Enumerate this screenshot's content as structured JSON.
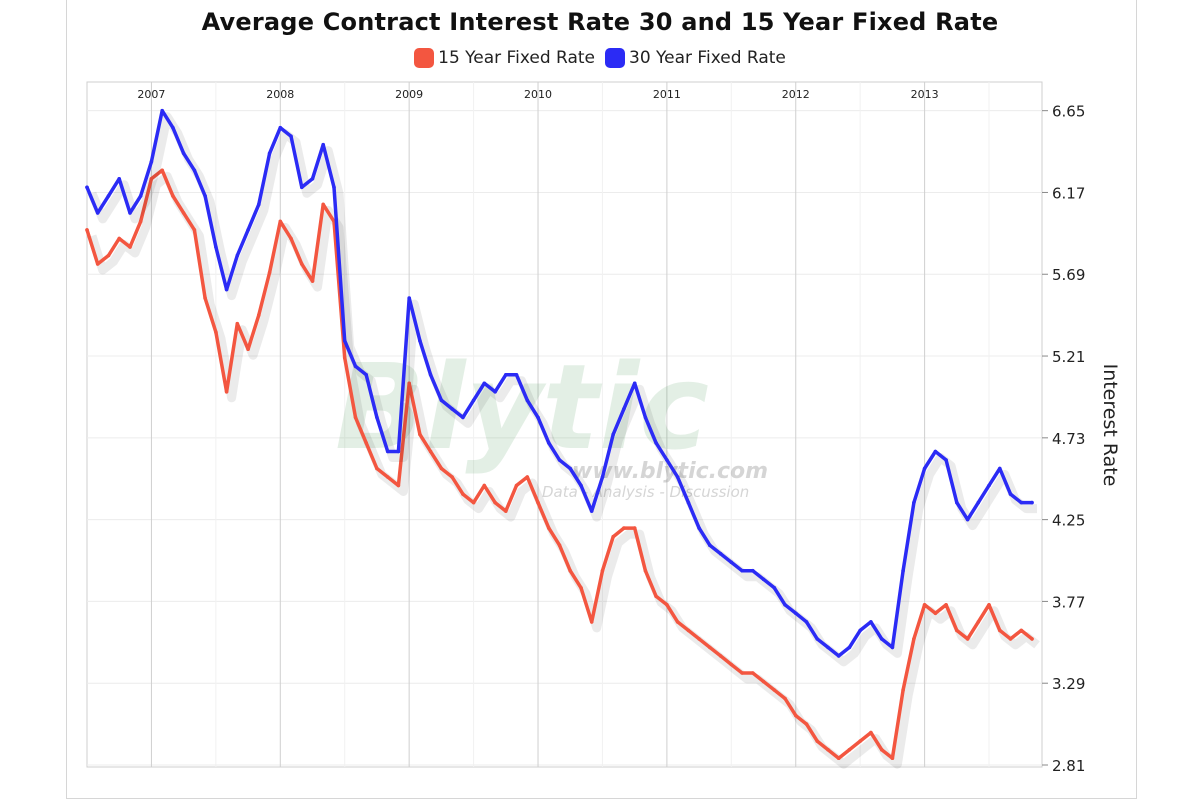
{
  "chart_data": {
    "type": "line",
    "title": "Average Contract Interest Rate 30 and 15 Year Fixed Rate",
    "ylabel": "Interest Rate",
    "xlabel": "",
    "ylim": [
      2.81,
      6.75
    ],
    "yticks": [
      "6.65",
      "6.17",
      "5.69",
      "5.21",
      "4.73",
      "4.25",
      "3.77",
      "3.29",
      "2.81"
    ],
    "xticks": [
      "2007",
      "2008",
      "2009",
      "2010",
      "2011",
      "2012",
      "2013"
    ],
    "legend_position": "top-center",
    "grid": true,
    "watermark": {
      "logo": "Blytic",
      "url": "www.blytic.com",
      "tagline": "Data - Analysis - Discussion"
    },
    "series": [
      {
        "name": "15 Year Fixed Rate",
        "color": "#f35640",
        "points": [
          [
            "2006-07",
            5.95
          ],
          [
            "2006-08",
            5.75
          ],
          [
            "2006-09",
            5.8
          ],
          [
            "2006-10",
            5.9
          ],
          [
            "2006-11",
            5.85
          ],
          [
            "2006-12",
            6.0
          ],
          [
            "2007-01",
            6.25
          ],
          [
            "2007-02",
            6.3
          ],
          [
            "2007-03",
            6.15
          ],
          [
            "2007-04",
            6.05
          ],
          [
            "2007-05",
            5.95
          ],
          [
            "2007-06",
            5.55
          ],
          [
            "2007-07",
            5.35
          ],
          [
            "2007-08",
            5.0
          ],
          [
            "2007-09",
            5.4
          ],
          [
            "2007-10",
            5.25
          ],
          [
            "2007-11",
            5.45
          ],
          [
            "2007-12",
            5.7
          ],
          [
            "2008-01",
            6.0
          ],
          [
            "2008-02",
            5.9
          ],
          [
            "2008-03",
            5.75
          ],
          [
            "2008-04",
            5.65
          ],
          [
            "2008-05",
            6.1
          ],
          [
            "2008-06",
            6.0
          ],
          [
            "2008-07",
            5.2
          ],
          [
            "2008-08",
            4.85
          ],
          [
            "2008-09",
            4.7
          ],
          [
            "2008-10",
            4.55
          ],
          [
            "2008-11",
            4.5
          ],
          [
            "2008-12",
            4.45
          ],
          [
            "2009-01",
            5.05
          ],
          [
            "2009-02",
            4.75
          ],
          [
            "2009-03",
            4.65
          ],
          [
            "2009-04",
            4.55
          ],
          [
            "2009-05",
            4.5
          ],
          [
            "2009-06",
            4.4
          ],
          [
            "2009-07",
            4.35
          ],
          [
            "2009-08",
            4.45
          ],
          [
            "2009-09",
            4.35
          ],
          [
            "2009-10",
            4.3
          ],
          [
            "2009-11",
            4.45
          ],
          [
            "2009-12",
            4.5
          ],
          [
            "2010-01",
            4.35
          ],
          [
            "2010-02",
            4.2
          ],
          [
            "2010-03",
            4.1
          ],
          [
            "2010-04",
            3.95
          ],
          [
            "2010-05",
            3.85
          ],
          [
            "2010-06",
            3.65
          ],
          [
            "2010-07",
            3.95
          ],
          [
            "2010-08",
            4.15
          ],
          [
            "2010-09",
            4.2
          ],
          [
            "2010-10",
            4.2
          ],
          [
            "2010-11",
            3.95
          ],
          [
            "2010-12",
            3.8
          ],
          [
            "2011-01",
            3.75
          ],
          [
            "2011-02",
            3.65
          ],
          [
            "2011-03",
            3.6
          ],
          [
            "2011-04",
            3.55
          ],
          [
            "2011-05",
            3.5
          ],
          [
            "2011-06",
            3.45
          ],
          [
            "2011-07",
            3.4
          ],
          [
            "2011-08",
            3.35
          ],
          [
            "2011-09",
            3.35
          ],
          [
            "2011-10",
            3.3
          ],
          [
            "2011-11",
            3.25
          ],
          [
            "2011-12",
            3.2
          ],
          [
            "2012-01",
            3.1
          ],
          [
            "2012-02",
            3.05
          ],
          [
            "2012-03",
            2.95
          ],
          [
            "2012-04",
            2.9
          ],
          [
            "2012-05",
            2.85
          ],
          [
            "2012-06",
            2.9
          ],
          [
            "2012-07",
            2.95
          ],
          [
            "2012-08",
            3.0
          ],
          [
            "2012-09",
            2.9
          ],
          [
            "2012-10",
            2.85
          ],
          [
            "2012-11",
            3.25
          ],
          [
            "2012-12",
            3.55
          ],
          [
            "2013-01",
            3.75
          ],
          [
            "2013-02",
            3.7
          ],
          [
            "2013-03",
            3.75
          ],
          [
            "2013-04",
            3.6
          ],
          [
            "2013-05",
            3.55
          ],
          [
            "2013-06",
            3.65
          ],
          [
            "2013-07",
            3.75
          ],
          [
            "2013-08",
            3.6
          ],
          [
            "2013-09",
            3.55
          ],
          [
            "2013-10",
            3.6
          ],
          [
            "2013-11",
            3.55
          ]
        ]
      },
      {
        "name": "30 Year Fixed Rate",
        "color": "#2b2bf5",
        "points": [
          [
            "2006-07",
            6.2
          ],
          [
            "2006-08",
            6.05
          ],
          [
            "2006-09",
            6.15
          ],
          [
            "2006-10",
            6.25
          ],
          [
            "2006-11",
            6.05
          ],
          [
            "2006-12",
            6.15
          ],
          [
            "2007-01",
            6.35
          ],
          [
            "2007-02",
            6.65
          ],
          [
            "2007-03",
            6.55
          ],
          [
            "2007-04",
            6.4
          ],
          [
            "2007-05",
            6.3
          ],
          [
            "2007-06",
            6.15
          ],
          [
            "2007-07",
            5.85
          ],
          [
            "2007-08",
            5.6
          ],
          [
            "2007-09",
            5.8
          ],
          [
            "2007-10",
            5.95
          ],
          [
            "2007-11",
            6.1
          ],
          [
            "2007-12",
            6.4
          ],
          [
            "2008-01",
            6.55
          ],
          [
            "2008-02",
            6.5
          ],
          [
            "2008-03",
            6.2
          ],
          [
            "2008-04",
            6.25
          ],
          [
            "2008-05",
            6.45
          ],
          [
            "2008-06",
            6.2
          ],
          [
            "2008-07",
            5.3
          ],
          [
            "2008-08",
            5.15
          ],
          [
            "2008-09",
            5.1
          ],
          [
            "2008-10",
            4.85
          ],
          [
            "2008-11",
            4.65
          ],
          [
            "2008-12",
            4.65
          ],
          [
            "2009-01",
            5.55
          ],
          [
            "2009-02",
            5.3
          ],
          [
            "2009-03",
            5.1
          ],
          [
            "2009-04",
            4.95
          ],
          [
            "2009-05",
            4.9
          ],
          [
            "2009-06",
            4.85
          ],
          [
            "2009-07",
            4.95
          ],
          [
            "2009-08",
            5.05
          ],
          [
            "2009-09",
            5.0
          ],
          [
            "2009-10",
            5.1
          ],
          [
            "2009-11",
            5.1
          ],
          [
            "2009-12",
            4.95
          ],
          [
            "2010-01",
            4.85
          ],
          [
            "2010-02",
            4.7
          ],
          [
            "2010-03",
            4.6
          ],
          [
            "2010-04",
            4.55
          ],
          [
            "2010-05",
            4.45
          ],
          [
            "2010-06",
            4.3
          ],
          [
            "2010-07",
            4.5
          ],
          [
            "2010-08",
            4.75
          ],
          [
            "2010-09",
            4.9
          ],
          [
            "2010-10",
            5.05
          ],
          [
            "2010-11",
            4.85
          ],
          [
            "2010-12",
            4.7
          ],
          [
            "2011-01",
            4.6
          ],
          [
            "2011-02",
            4.5
          ],
          [
            "2011-03",
            4.35
          ],
          [
            "2011-04",
            4.2
          ],
          [
            "2011-05",
            4.1
          ],
          [
            "2011-06",
            4.05
          ],
          [
            "2011-07",
            4.0
          ],
          [
            "2011-08",
            3.95
          ],
          [
            "2011-09",
            3.95
          ],
          [
            "2011-10",
            3.9
          ],
          [
            "2011-11",
            3.85
          ],
          [
            "2011-12",
            3.75
          ],
          [
            "2012-01",
            3.7
          ],
          [
            "2012-02",
            3.65
          ],
          [
            "2012-03",
            3.55
          ],
          [
            "2012-04",
            3.5
          ],
          [
            "2012-05",
            3.45
          ],
          [
            "2012-06",
            3.5
          ],
          [
            "2012-07",
            3.6
          ],
          [
            "2012-08",
            3.65
          ],
          [
            "2012-09",
            3.55
          ],
          [
            "2012-10",
            3.5
          ],
          [
            "2012-11",
            3.95
          ],
          [
            "2012-12",
            4.35
          ],
          [
            "2013-01",
            4.55
          ],
          [
            "2013-02",
            4.65
          ],
          [
            "2013-03",
            4.6
          ],
          [
            "2013-04",
            4.35
          ],
          [
            "2013-05",
            4.25
          ],
          [
            "2013-06",
            4.35
          ],
          [
            "2013-07",
            4.45
          ],
          [
            "2013-08",
            4.55
          ],
          [
            "2013-09",
            4.4
          ],
          [
            "2013-10",
            4.35
          ],
          [
            "2013-11",
            4.35
          ]
        ]
      }
    ]
  }
}
